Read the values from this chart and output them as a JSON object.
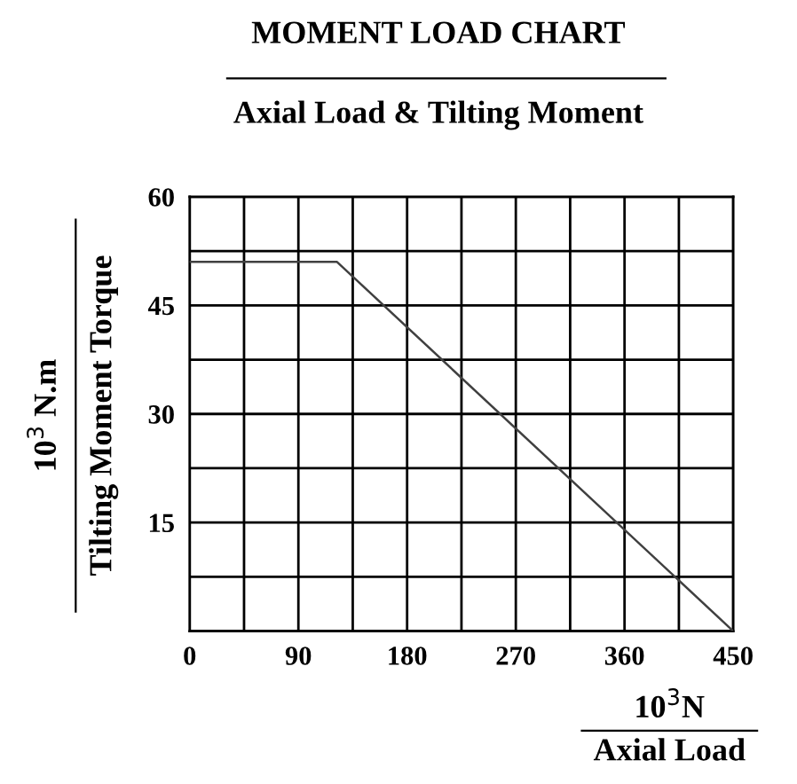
{
  "chart_data": {
    "type": "line",
    "title": "MOMENT LOAD CHART",
    "subtitle": "Axial Load & Tilting Moment",
    "ylabel": "10$^{3}$ N.m\nTilting Moment Torque",
    "xlabel": "10$^{3}$N\nAxial Load",
    "x": [
      0,
      122,
      450
    ],
    "series": [
      {
        "color": "#404040",
        "values": [
          51,
          51,
          0
        ]
      }
    ],
    "xlim": [
      0,
      450
    ],
    "ylim": [
      0,
      60
    ],
    "xticks": [
      0,
      {
        "value": 45,
        "label": null
      },
      90,
      {
        "value": 135,
        "label": null
      },
      180,
      {
        "value": 225,
        "label": null
      },
      270,
      {
        "value": 315,
        "label": null
      },
      360,
      {
        "value": 405,
        "label": null
      },
      450
    ],
    "yticks": [
      {
        "value": 0,
        "label": null
      },
      {
        "value": 7.5,
        "label": null
      },
      15,
      {
        "value": 22.5,
        "label": null
      },
      30,
      {
        "value": 37.5,
        "label": null
      },
      45,
      {
        "value": 52.5,
        "label": null
      },
      60
    ],
    "grid": true,
    "marker": "none",
    "line_style": "solid"
  }
}
